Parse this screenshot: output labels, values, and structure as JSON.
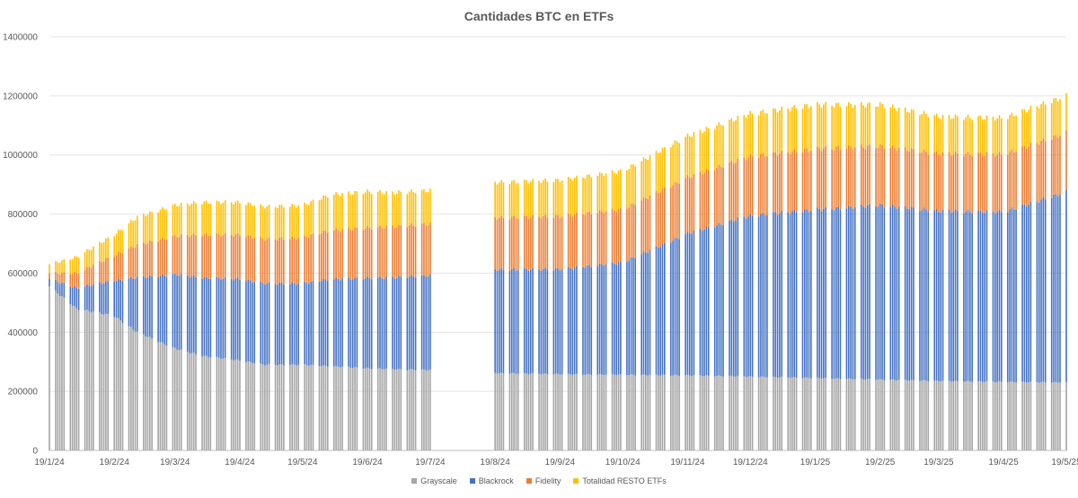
{
  "chart_data": {
    "type": "bar",
    "stacked": true,
    "title": "Cantidades BTC en ETFs",
    "xlabel": "",
    "ylabel": "",
    "ylim": [
      0,
      1400000
    ],
    "yticks": [
      0,
      200000,
      400000,
      600000,
      800000,
      1000000,
      1200000,
      1400000
    ],
    "grid": true,
    "legend_position": "bottom",
    "x_tick_labels": [
      "19/1/24",
      "19/2/24",
      "19/3/24",
      "19/4/24",
      "19/5/24",
      "19/6/24",
      "19/7/24",
      "19/8/24",
      "19/9/24",
      "19/10/24",
      "19/11/24",
      "19/12/24",
      "19/1/25",
      "19/2/25",
      "19/3/25",
      "19/4/25",
      "19/5/25"
    ],
    "x_tick_dates": [
      "2024-01-19",
      "2024-02-19",
      "2024-03-19",
      "2024-04-19",
      "2024-05-19",
      "2024-06-19",
      "2024-07-19",
      "2024-08-19",
      "2024-09-19",
      "2024-10-19",
      "2024-11-19",
      "2024-12-19",
      "2025-01-19",
      "2025-02-19",
      "2025-03-19",
      "2025-04-19",
      "2025-05-19"
    ],
    "x_range": [
      "2024-01-19",
      "2025-05-19"
    ],
    "no_data_range": [
      "2024-07-20",
      "2024-08-16"
    ],
    "bars_per_week": 5,
    "series": [
      {
        "name": "Grayscale",
        "color": "#a5a5a5",
        "dates": [
          "2024-01-19",
          "2024-02-01",
          "2024-02-19",
          "2024-03-01",
          "2024-03-19",
          "2024-04-01",
          "2024-04-19",
          "2024-05-01",
          "2024-05-19",
          "2024-06-01",
          "2024-06-19",
          "2024-07-01",
          "2024-07-19",
          "2024-08-19",
          "2024-09-19",
          "2024-10-19",
          "2024-11-19",
          "2024-12-19",
          "2025-01-19",
          "2025-02-19",
          "2025-03-19",
          "2025-04-19",
          "2025-05-19"
        ],
        "values": [
          555000,
          480000,
          455000,
          400000,
          345000,
          320000,
          305000,
          290000,
          290000,
          285000,
          278000,
          275000,
          272000,
          262000,
          258000,
          256000,
          254000,
          250000,
          245000,
          240000,
          235000,
          232000,
          230000
        ]
      },
      {
        "name": "Blackrock",
        "color": "#4472c4",
        "dates": [
          "2024-01-19",
          "2024-02-01",
          "2024-02-19",
          "2024-03-01",
          "2024-03-19",
          "2024-04-01",
          "2024-04-19",
          "2024-05-01",
          "2024-05-19",
          "2024-06-01",
          "2024-06-19",
          "2024-07-01",
          "2024-07-19",
          "2024-08-19",
          "2024-09-19",
          "2024-10-19",
          "2024-11-19",
          "2024-12-19",
          "2025-01-19",
          "2025-02-19",
          "2025-03-19",
          "2025-04-19",
          "2025-05-19"
        ],
        "values": [
          25000,
          70000,
          120000,
          185000,
          250000,
          265000,
          275000,
          275000,
          275000,
          295000,
          305000,
          310000,
          320000,
          350000,
          355000,
          380000,
          480000,
          545000,
          570000,
          590000,
          575000,
          575000,
          645000
        ]
      },
      {
        "name": "Fidelity",
        "color": "#ed7d31",
        "dates": [
          "2024-01-19",
          "2024-02-01",
          "2024-02-19",
          "2024-03-01",
          "2024-03-19",
          "2024-04-01",
          "2024-04-19",
          "2024-05-01",
          "2024-05-19",
          "2024-06-01",
          "2024-06-19",
          "2024-07-01",
          "2024-07-19",
          "2024-08-19",
          "2024-09-19",
          "2024-10-19",
          "2024-11-19",
          "2024-12-19",
          "2025-01-19",
          "2025-02-19",
          "2025-03-19",
          "2025-04-19",
          "2025-05-19"
        ],
        "values": [
          20000,
          50000,
          85000,
          110000,
          130000,
          145000,
          150000,
          150000,
          155000,
          165000,
          170000,
          172000,
          175000,
          175000,
          180000,
          180000,
          190000,
          200000,
          205000,
          200000,
          195000,
          195000,
          200000
        ]
      },
      {
        "name": "Totalidad RESTO ETFs",
        "color": "#ffc000",
        "dates": [
          "2024-01-19",
          "2024-02-01",
          "2024-02-19",
          "2024-03-01",
          "2024-03-19",
          "2024-04-01",
          "2024-04-19",
          "2024-05-01",
          "2024-05-19",
          "2024-06-01",
          "2024-06-19",
          "2024-07-01",
          "2024-07-19",
          "2024-08-19",
          "2024-09-19",
          "2024-10-19",
          "2024-11-19",
          "2024-12-19",
          "2025-01-19",
          "2025-02-19",
          "2025-03-19",
          "2025-04-19",
          "2025-05-19"
        ],
        "values": [
          30000,
          55000,
          70000,
          95000,
          105000,
          110000,
          110000,
          110000,
          110000,
          120000,
          123000,
          115000,
          113000,
          120000,
          122000,
          130000,
          140000,
          145000,
          150000,
          140000,
          125000,
          123000,
          125000
        ]
      }
    ]
  }
}
